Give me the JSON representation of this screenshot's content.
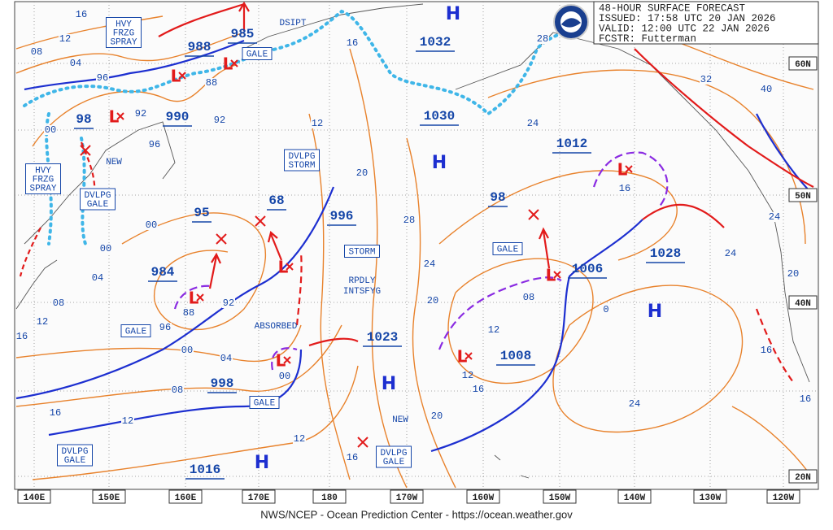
{
  "header": {
    "lines": [
      "48-HOUR SURFACE FORECAST",
      "ISSUED: 17:58 UTC 20 JAN 2026",
      "VALID:  12:00 UTC 22 JAN 2026",
      "FCSTR:  Futterman"
    ]
  },
  "footer": "NWS/NCEP - Ocean Prediction Center - https://ocean.weather.gov",
  "lat_labels": [
    "60N",
    "50N",
    "40N",
    "20N"
  ],
  "lon_labels": [
    "140E",
    "150E",
    "160E",
    "170E",
    "180",
    "170W",
    "160W",
    "150W",
    "140W",
    "130W",
    "120W"
  ],
  "boxed_labels": [
    [
      "HVY",
      "FRZG",
      "SPRAY"
    ],
    [
      "GALE"
    ],
    [
      "DVLPG",
      "STORM"
    ],
    [
      "HVY",
      "FRZG",
      "SPRAY"
    ],
    [
      "DVLPG",
      "GALE"
    ],
    [
      "GALE"
    ],
    [
      "STORM"
    ],
    [
      "GALE"
    ],
    [
      "GALE"
    ],
    [
      "DVLPG",
      "GALE"
    ],
    [
      "DVLPG",
      "GALE"
    ]
  ],
  "plain_labels": [
    "DSIPT",
    "RPDLY",
    "INTSFYG",
    "ABSORBED",
    "NEW",
    "NEW"
  ],
  "pressure_labels": [
    "988",
    "985",
    "990",
    "98",
    "1032",
    "1030",
    "1012",
    "98",
    "1006",
    "1028",
    "996",
    "68",
    "95",
    "984",
    "998",
    "1023",
    "1008",
    "1016"
  ],
  "highs": [
    "H",
    "H",
    "H",
    "H",
    "H"
  ],
  "lows": [
    "L",
    "L",
    "L",
    "L",
    "L",
    "L",
    "L",
    "L",
    "L"
  ],
  "center_values": [
    "88",
    "00",
    "12",
    "16"
  ],
  "isobar_labels": [
    "16",
    "12",
    "08",
    "04",
    "96",
    "00",
    "92",
    "88",
    "92",
    "96",
    "16",
    "12",
    "20",
    "28",
    "24",
    "20",
    "16",
    "20",
    "24",
    "28",
    "32",
    "40",
    "24",
    "24",
    "20",
    "16",
    "24",
    "16",
    "12",
    "08",
    "0",
    "00",
    "04",
    "08",
    "12",
    "16",
    "96",
    "00",
    "04",
    "08",
    "12",
    "16",
    "12",
    "00",
    "92",
    "16"
  ]
}
